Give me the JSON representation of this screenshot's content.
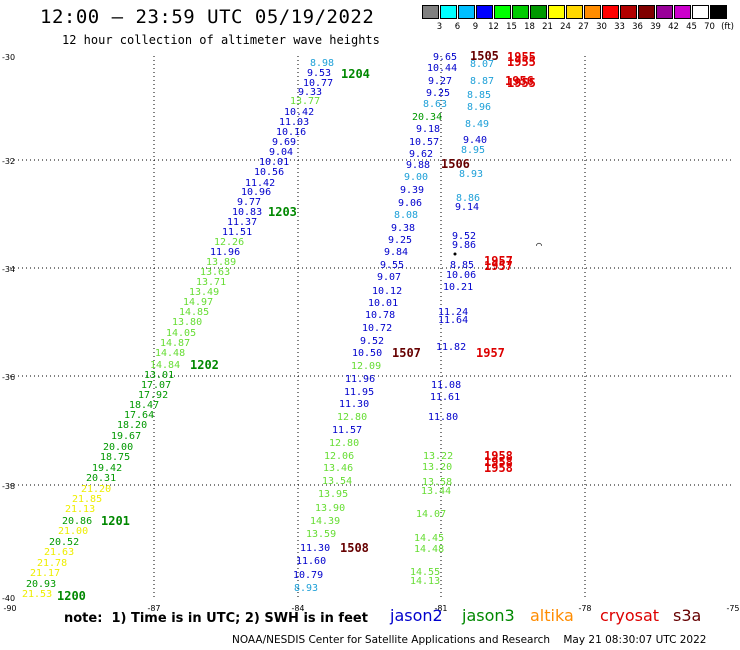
{
  "title": "12:00 – 23:59 UTC 05/19/2022",
  "subtitle": "12 hour collection of altimeter wave heights",
  "scale": {
    "unit": "(ft)",
    "colors": [
      "#808080",
      "#00ffff",
      "#00bfff",
      "#0000ff",
      "#00ff00",
      "#00cc00",
      "#009900",
      "#ffff00",
      "#ffd700",
      "#ff8c00",
      "#ff0000",
      "#b20000",
      "#800000",
      "#990099",
      "#cc00cc",
      "#ffffff",
      "#000000"
    ],
    "labels": [
      "3",
      "6",
      "9",
      "12",
      "15",
      "18",
      "21",
      "24",
      "27",
      "30",
      "33",
      "36",
      "39",
      "42",
      "45",
      "70"
    ]
  },
  "axes": {
    "y_label_values": [
      "-30",
      "-32",
      "-34",
      "-36",
      "-38",
      "-40"
    ],
    "x_label_values": [
      "-90",
      "-87",
      "-84",
      "-81",
      "-78",
      "-75"
    ]
  },
  "satellites": {
    "jason2": "#0000cc",
    "jason3": "#008800",
    "altika": "#ff8c00",
    "cryosat": "#dd0000",
    "s3a": "#660000"
  },
  "tracks": [
    {
      "id": "t1200-1204",
      "color_key": "mixed",
      "points": [
        {
          "v": "8.98",
          "c": "#1ea0d8"
        },
        {
          "v": "9.53",
          "c": "#0000cc"
        },
        {
          "v": "10.77",
          "c": "#0000cc"
        },
        {
          "v": "9.33",
          "c": "#0000cc"
        },
        {
          "v": "13.77",
          "c": "#66dd33"
        },
        {
          "v": "10.42",
          "c": "#0000cc"
        },
        {
          "v": "11.03",
          "c": "#0000cc"
        },
        {
          "v": "10.16",
          "c": "#0000cc"
        },
        {
          "v": "9.69",
          "c": "#0000cc"
        },
        {
          "v": "9.04",
          "c": "#0000cc"
        },
        {
          "v": "10.01",
          "c": "#0000cc"
        },
        {
          "v": "10.56",
          "c": "#0000cc"
        },
        {
          "v": "11.42",
          "c": "#0000cc"
        },
        {
          "v": "10.96",
          "c": "#0000cc"
        },
        {
          "v": "9.77",
          "c": "#0000cc"
        },
        {
          "v": "10.83",
          "c": "#0000cc"
        },
        {
          "v": "11.37",
          "c": "#0000cc"
        },
        {
          "v": "11.51",
          "c": "#0000cc"
        },
        {
          "v": "12.26",
          "c": "#66dd33"
        },
        {
          "v": "11.96",
          "c": "#0000cc"
        },
        {
          "v": "13.89",
          "c": "#66dd33"
        },
        {
          "v": "13.63",
          "c": "#66dd33"
        },
        {
          "v": "13.71",
          "c": "#66dd33"
        },
        {
          "v": "13.49",
          "c": "#66dd33"
        },
        {
          "v": "14.97",
          "c": "#66dd33"
        },
        {
          "v": "14.85",
          "c": "#66dd33"
        },
        {
          "v": "13.80",
          "c": "#66dd33"
        },
        {
          "v": "14.05",
          "c": "#66dd33"
        },
        {
          "v": "14.87",
          "c": "#66dd33"
        },
        {
          "v": "14.48",
          "c": "#66dd33"
        },
        {
          "v": "14.84",
          "c": "#66dd33"
        },
        {
          "v": "13.01",
          "c": "#009900"
        },
        {
          "v": "17.07",
          "c": "#009900"
        },
        {
          "v": "17.92",
          "c": "#009900"
        },
        {
          "v": "18.47",
          "c": "#009900"
        },
        {
          "v": "17.64",
          "c": "#009900"
        },
        {
          "v": "18.20",
          "c": "#009900"
        },
        {
          "v": "19.67",
          "c": "#009900"
        },
        {
          "v": "20.00",
          "c": "#009900"
        },
        {
          "v": "18.75",
          "c": "#009900"
        },
        {
          "v": "19.42",
          "c": "#009900"
        },
        {
          "v": "20.31",
          "c": "#009900"
        },
        {
          "v": "21.20",
          "c": "#eeee00"
        },
        {
          "v": "21.85",
          "c": "#eeee00"
        },
        {
          "v": "21.13",
          "c": "#eeee00"
        },
        {
          "v": "20.86",
          "c": "#009900"
        },
        {
          "v": "21.00",
          "c": "#eeee00"
        },
        {
          "v": "20.52",
          "c": "#009900"
        },
        {
          "v": "21.63",
          "c": "#eeee00"
        },
        {
          "v": "21.78",
          "c": "#eeee00"
        },
        {
          "v": "21.17",
          "c": "#eeee00"
        },
        {
          "v": "20.93",
          "c": "#009900"
        },
        {
          "v": "21.53",
          "c": "#eeee00"
        }
      ]
    },
    {
      "id": "t1505-1508",
      "points": [
        {
          "v": "9.65",
          "c": "#0000cc"
        },
        {
          "v": "10.44",
          "c": "#0000cc"
        },
        {
          "v": "9.27",
          "c": "#0000cc"
        },
        {
          "v": "9.25",
          "c": "#0000cc"
        },
        {
          "v": "8.63",
          "c": "#1ea0d8"
        },
        {
          "v": "20.34",
          "c": "#009900"
        },
        {
          "v": "9.18",
          "c": "#0000cc"
        },
        {
          "v": "10.57",
          "c": "#0000cc"
        },
        {
          "v": "9.62",
          "c": "#0000cc"
        },
        {
          "v": "9.88",
          "c": "#0000cc"
        },
        {
          "v": "9.00",
          "c": "#1ea0d8"
        },
        {
          "v": "9.39",
          "c": "#0000cc"
        },
        {
          "v": "9.06",
          "c": "#0000cc"
        },
        {
          "v": "8.08",
          "c": "#1ea0d8"
        },
        {
          "v": "9.38",
          "c": "#0000cc"
        },
        {
          "v": "9.25",
          "c": "#0000cc"
        },
        {
          "v": "9.84",
          "c": "#0000cc"
        },
        {
          "v": "9.55",
          "c": "#0000cc"
        },
        {
          "v": "9.07",
          "c": "#0000cc"
        },
        {
          "v": "10.12",
          "c": "#0000cc"
        },
        {
          "v": "10.01",
          "c": "#0000cc"
        },
        {
          "v": "10.78",
          "c": "#0000cc"
        },
        {
          "v": "10.72",
          "c": "#0000cc"
        },
        {
          "v": "9.52",
          "c": "#0000cc"
        },
        {
          "v": "10.50",
          "c": "#0000cc"
        },
        {
          "v": "12.09",
          "c": "#66dd33"
        },
        {
          "v": "11.96",
          "c": "#0000cc"
        },
        {
          "v": "11.95",
          "c": "#0000cc"
        },
        {
          "v": "11.30",
          "c": "#0000cc"
        },
        {
          "v": "12.80",
          "c": "#66dd33"
        },
        {
          "v": "11.57",
          "c": "#0000cc"
        },
        {
          "v": "12.80",
          "c": "#66dd33"
        },
        {
          "v": "12.06",
          "c": "#66dd33"
        },
        {
          "v": "13.46",
          "c": "#66dd33"
        },
        {
          "v": "13.54",
          "c": "#66dd33"
        },
        {
          "v": "13.95",
          "c": "#66dd33"
        },
        {
          "v": "13.90",
          "c": "#66dd33"
        },
        {
          "v": "14.39",
          "c": "#66dd33"
        },
        {
          "v": "13.59",
          "c": "#66dd33"
        },
        {
          "v": "11.30",
          "c": "#0000cc"
        },
        {
          "v": "11.60",
          "c": "#0000cc"
        },
        {
          "v": "10.79",
          "c": "#0000cc"
        },
        {
          "v": "8.93",
          "c": "#1ea0d8"
        }
      ]
    },
    {
      "id": "t1955-1958",
      "points": [
        {
          "v": "8.07",
          "c": "#1ea0d8"
        },
        {
          "v": "8.87",
          "c": "#1ea0d8"
        },
        {
          "v": "8.85",
          "c": "#1ea0d8"
        },
        {
          "v": "8.96",
          "c": "#1ea0d8"
        },
        {
          "v": "8.49",
          "c": "#1ea0d8"
        },
        {
          "v": "9.40",
          "c": "#0000cc"
        },
        {
          "v": "8.95",
          "c": "#1ea0d8"
        },
        {
          "v": "8.93",
          "c": "#1ea0d8"
        },
        {
          "v": "8.86",
          "c": "#1ea0d8"
        },
        {
          "v": "9.14",
          "c": "#0000cc"
        },
        {
          "v": "9.52",
          "c": "#0000cc"
        },
        {
          "v": "9.86",
          "c": "#0000cc"
        },
        {
          "v": "8.85",
          "c": "#0000cc"
        },
        {
          "v": "10.06",
          "c": "#0000cc"
        },
        {
          "v": "10.21",
          "c": "#0000cc"
        },
        {
          "v": "11.24",
          "c": "#0000cc"
        },
        {
          "v": "11.64",
          "c": "#0000cc"
        },
        {
          "v": "11.82",
          "c": "#0000cc"
        },
        {
          "v": "11.08",
          "c": "#0000cc"
        },
        {
          "v": "11.61",
          "c": "#0000cc"
        },
        {
          "v": "11.80",
          "c": "#0000cc"
        },
        {
          "v": "13.22",
          "c": "#66dd33"
        },
        {
          "v": "13.20",
          "c": "#66dd33"
        },
        {
          "v": "13.58",
          "c": "#66dd33"
        },
        {
          "v": "13.44",
          "c": "#66dd33"
        },
        {
          "v": "14.07",
          "c": "#66dd33"
        },
        {
          "v": "14.45",
          "c": "#66dd33"
        },
        {
          "v": "14.48",
          "c": "#66dd33"
        },
        {
          "v": "14.55",
          "c": "#66dd33"
        },
        {
          "v": "14.13",
          "c": "#66dd33"
        }
      ]
    }
  ],
  "time_labels": [
    {
      "v": "1204",
      "c": "#008800"
    },
    {
      "v": "1203",
      "c": "#008800"
    },
    {
      "v": "1202",
      "c": "#008800"
    },
    {
      "v": "1201",
      "c": "#008800"
    },
    {
      "v": "1200",
      "c": "#008800"
    },
    {
      "v": "1505",
      "c": "#660000"
    },
    {
      "v": "1506",
      "c": "#660000"
    },
    {
      "v": "1507",
      "c": "#660000"
    },
    {
      "v": "1508",
      "c": "#660000"
    },
    {
      "v": "1955",
      "c": "#dd0000"
    },
    {
      "v": "1956",
      "c": "#dd0000"
    },
    {
      "v": "1957",
      "c": "#dd0000"
    },
    {
      "v": "1958",
      "c": "#dd0000"
    }
  ],
  "note": "note:  1) Time is in UTC; 2) SWH is in feet",
  "legend": [
    {
      "v": "jason2",
      "c": "#0000cc"
    },
    {
      "v": "jason3",
      "c": "#008800"
    },
    {
      "v": "altika",
      "c": "#ff8c00"
    },
    {
      "v": "cryosat",
      "c": "#dd0000"
    },
    {
      "v": "s3a",
      "c": "#660000"
    }
  ],
  "credit": "NOAA/NESDIS Center for Satellite Applications and Research    May 21 08:30:07 UTC 2022"
}
